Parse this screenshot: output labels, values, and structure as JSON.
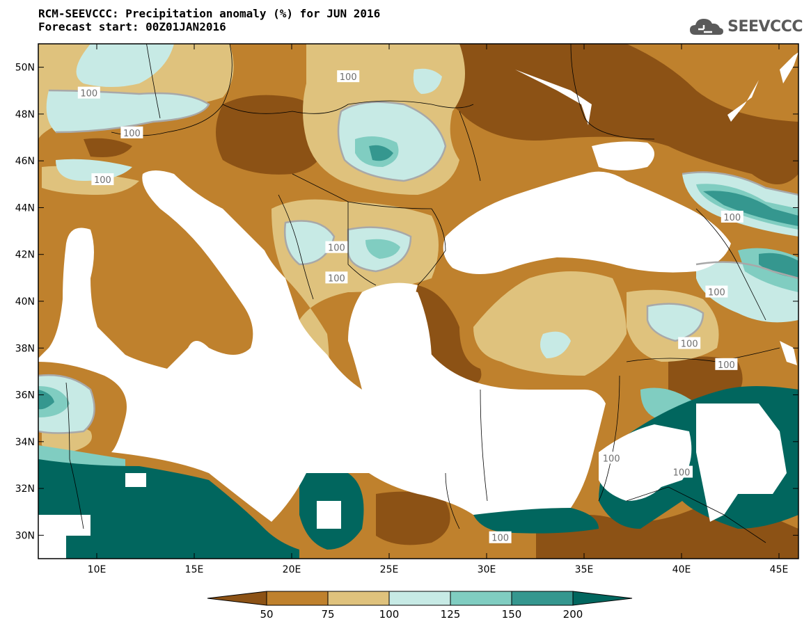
{
  "header": {
    "title_line1": "RCM-SEEVCCC: Precipitation anomaly (%) for JUN 2016",
    "title_line2": "Forecast start: 00Z01JAN2016",
    "logo_text": "SEEVCCC"
  },
  "map": {
    "lon_range": [
      7,
      46
    ],
    "lat_range": [
      29,
      51
    ],
    "lat_ticks": [
      {
        "value": 50,
        "label": "50N"
      },
      {
        "value": 48,
        "label": "48N"
      },
      {
        "value": 46,
        "label": "46N"
      },
      {
        "value": 44,
        "label": "44N"
      },
      {
        "value": 42,
        "label": "42N"
      },
      {
        "value": 40,
        "label": "40N"
      },
      {
        "value": 38,
        "label": "38N"
      },
      {
        "value": 36,
        "label": "36N"
      },
      {
        "value": 34,
        "label": "34N"
      },
      {
        "value": 32,
        "label": "32N"
      },
      {
        "value": 30,
        "label": "30N"
      }
    ],
    "lon_ticks": [
      {
        "value": 10,
        "label": "10E"
      },
      {
        "value": 15,
        "label": "15E"
      },
      {
        "value": 20,
        "label": "20E"
      },
      {
        "value": 25,
        "label": "25E"
      },
      {
        "value": 30,
        "label": "30E"
      },
      {
        "value": 35,
        "label": "35E"
      },
      {
        "value": 40,
        "label": "40E"
      },
      {
        "value": 45,
        "label": "45E"
      }
    ],
    "contour_labels": [
      {
        "text": "100",
        "lon": 9.6,
        "lat": 48.9
      },
      {
        "text": "100",
        "lon": 10.3,
        "lat": 45.2
      },
      {
        "text": "100",
        "lon": 11.8,
        "lat": 47.2
      },
      {
        "text": "100",
        "lon": 22.9,
        "lat": 49.6
      },
      {
        "text": "100",
        "lon": 22.3,
        "lat": 42.3
      },
      {
        "text": "100",
        "lon": 22.3,
        "lat": 41.0
      },
      {
        "text": "100",
        "lon": 42.6,
        "lat": 43.6
      },
      {
        "text": "100",
        "lon": 41.8,
        "lat": 40.4
      },
      {
        "text": "100",
        "lon": 40.4,
        "lat": 38.2
      },
      {
        "text": "100",
        "lon": 42.3,
        "lat": 37.3
      },
      {
        "text": "100",
        "lon": 36.4,
        "lat": 33.3
      },
      {
        "text": "100",
        "lon": 40.0,
        "lat": 32.7
      },
      {
        "text": "100",
        "lon": 30.7,
        "lat": 29.9
      }
    ]
  },
  "colorbar": {
    "labels": [
      "50",
      "75",
      "100",
      "125",
      "150",
      "200"
    ],
    "colors": [
      "#8c5215",
      "#bf812d",
      "#dfc27d",
      "#c7eae5",
      "#80cdc1",
      "#35978f",
      "#01665e"
    ]
  },
  "chart_data": {
    "type": "heatmap",
    "title": "RCM-SEEVCCC: Precipitation anomaly (%) for JUN 2016",
    "subtitle": "Forecast start: 00Z01JAN2016",
    "xlabel": "",
    "ylabel": "",
    "x_range": [
      7,
      46
    ],
    "y_range": [
      29,
      51
    ],
    "levels": [
      50,
      75,
      100,
      125,
      150,
      200
    ],
    "legend": "bottom",
    "colors": [
      "#8c5215",
      "#bf812d",
      "#dfc27d",
      "#c7eae5",
      "#80cdc1",
      "#35978f",
      "#01665e"
    ]
  }
}
